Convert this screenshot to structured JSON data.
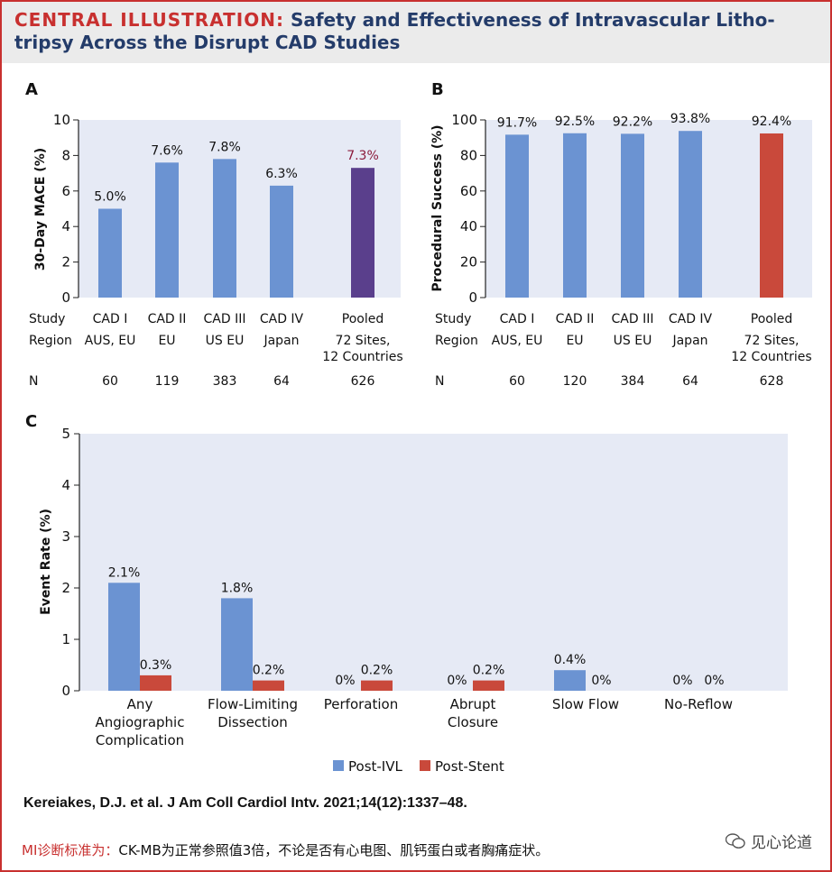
{
  "header": {
    "lead": "CENTRAL ILLUSTRATION:",
    "title": "Safety and Effectiveness of Intravascular Litho-tripsy Across the Disrupt CAD Studies"
  },
  "row_labels": {
    "study": "Study",
    "region": "Region",
    "n": "N"
  },
  "chart_data": [
    {
      "panel": "A",
      "type": "bar",
      "ylabel": "30-Day MACE (%)",
      "ylim": [
        0,
        10
      ],
      "yticks": [
        "0",
        "2",
        "4",
        "6",
        "8",
        "10"
      ],
      "categories": [
        "CAD I",
        "CAD II",
        "CAD III",
        "CAD IV",
        "Pooled"
      ],
      "regions": [
        "AUS, EU",
        "EU",
        "US EU",
        "Japan",
        "72 Sites,\n12 Countries"
      ],
      "n": [
        "60",
        "119",
        "383",
        "64",
        "626"
      ],
      "values": [
        5.0,
        7.6,
        7.8,
        6.3,
        7.3
      ],
      "labels": [
        "5.0%",
        "7.6%",
        "7.8%",
        "6.3%",
        "7.3%"
      ],
      "colors": {
        "study": "#6b93d2",
        "pooled": "#5a3f8c",
        "pooled_label": "#8b1a3a"
      }
    },
    {
      "panel": "B",
      "type": "bar",
      "ylabel": "Procedural Success (%)",
      "ylim": [
        0,
        100
      ],
      "yticks": [
        "0",
        "20",
        "40",
        "60",
        "80",
        "100"
      ],
      "categories": [
        "CAD I",
        "CAD II",
        "CAD III",
        "CAD IV",
        "Pooled"
      ],
      "regions": [
        "AUS, EU",
        "EU",
        "US EU",
        "Japan",
        "72 Sites,\n12 Countries"
      ],
      "n": [
        "60",
        "120",
        "384",
        "64",
        "628"
      ],
      "values": [
        91.7,
        92.5,
        92.2,
        93.8,
        92.4
      ],
      "labels": [
        "91.7%",
        "92.5%",
        "92.2%",
        "93.8%",
        "92.4%"
      ],
      "colors": {
        "study": "#6b93d2",
        "pooled": "#c9493b",
        "pooled_label": "#111111"
      }
    },
    {
      "panel": "C",
      "type": "bar",
      "ylabel": "Event Rate (%)",
      "ylim": [
        0,
        5
      ],
      "yticks": [
        "0",
        "1",
        "2",
        "3",
        "4",
        "5"
      ],
      "categories": [
        "Any\nAngiographic\nComplication",
        "Flow-Limiting\nDissection",
        "Perforation",
        "Abrupt\nClosure",
        "Slow Flow",
        "No-Reflow"
      ],
      "series": [
        {
          "name": "Post-IVL",
          "color": "#6b93d2",
          "values": [
            2.1,
            1.8,
            0,
            0,
            0.4,
            0
          ],
          "labels": [
            "2.1%",
            "1.8%",
            "0%",
            "0%",
            "0.4%",
            "0%"
          ]
        },
        {
          "name": "Post-Stent",
          "color": "#c9493b",
          "values": [
            0.3,
            0.2,
            0.2,
            0.2,
            0,
            0
          ],
          "labels": [
            "0.3%",
            "0.2%",
            "0.2%",
            "0.2%",
            "0%",
            "0%"
          ]
        }
      ]
    }
  ],
  "citation": "Kereiakes, D.J. et al. J Am Coll Cardiol Intv. 2021;14(12):1337–48.",
  "note": {
    "prefix": "MI诊断标准为：",
    "body": "CK-MB为正常参照值3倍，不论是否有心电图、肌钙蛋白或者胸痛症状。"
  },
  "watermark": "见心论道",
  "colors": {
    "accent": "#c8302f",
    "title": "#243c6a",
    "plot_bg": "#e6eaf5"
  }
}
